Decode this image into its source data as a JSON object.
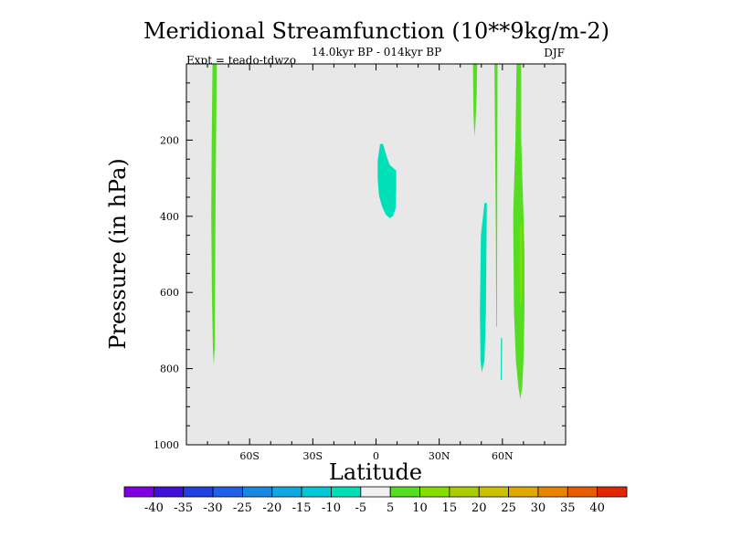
{
  "chart_data": {
    "type": "contour",
    "title": "Meridional Streamfunction (10**9kg/m-2)",
    "subtitle": "14.0kyr BP - 014kyr BP",
    "left_label": "Expt = teado-tdwzo",
    "right_label": "DJF",
    "xlabel": "Latitude",
    "ylabel": "Pressure (in hPa)",
    "xlim": [
      -90,
      90
    ],
    "ylim": [
      1000,
      0
    ],
    "x_ticks": [
      {
        "value": -60,
        "label": "60S"
      },
      {
        "value": -30,
        "label": "30S"
      },
      {
        "value": 0,
        "label": "0"
      },
      {
        "value": 30,
        "label": "30N"
      },
      {
        "value": 60,
        "label": "60N"
      }
    ],
    "y_ticks": [
      {
        "value": 200,
        "label": "200"
      },
      {
        "value": 400,
        "label": "400"
      },
      {
        "value": 600,
        "label": "600"
      },
      {
        "value": 800,
        "label": "800"
      },
      {
        "value": 1000,
        "label": "1000"
      }
    ],
    "background_color": "#e8e8e8",
    "regions": [
      {
        "name": "sh-positive-cell",
        "level": "5 to 10",
        "color": "#55dd22",
        "points": [
          [
            -77.6,
            0
          ],
          [
            -75.6,
            0
          ],
          [
            -75.9,
            200
          ],
          [
            -76.2,
            400
          ],
          [
            -76.4,
            600
          ],
          [
            -76.6,
            750
          ],
          [
            -77.0,
            790
          ],
          [
            -77.4,
            750
          ],
          [
            -77.9,
            600
          ],
          [
            -78.2,
            400
          ],
          [
            -78.0,
            200
          ]
        ]
      },
      {
        "name": "equatorial-negative-cell",
        "level": "-10 to -5",
        "color": "#00e0b8",
        "points": [
          [
            1.9,
            210
          ],
          [
            3.3,
            210
          ],
          [
            5.2,
            245
          ],
          [
            6.5,
            265
          ],
          [
            9.6,
            280
          ],
          [
            9.6,
            330
          ],
          [
            9.3,
            380
          ],
          [
            8.0,
            400
          ],
          [
            6.5,
            405
          ],
          [
            4.6,
            395
          ],
          [
            2.9,
            375
          ],
          [
            1.4,
            345
          ],
          [
            0.8,
            300
          ],
          [
            0.8,
            255
          ]
        ]
      },
      {
        "name": "nh-positive-strip-a",
        "level": "5 to 10",
        "color": "#55dd22",
        "points": [
          [
            46.0,
            0
          ],
          [
            48.0,
            0
          ],
          [
            47.8,
            80
          ],
          [
            47.2,
            160
          ],
          [
            46.7,
            190
          ],
          [
            46.3,
            130
          ]
        ]
      },
      {
        "name": "nh-negative-cell-a",
        "level": "-10 to -5",
        "color": "#00e0b8",
        "points": [
          [
            51.5,
            365
          ],
          [
            52.6,
            365
          ],
          [
            52.4,
            500
          ],
          [
            52.2,
            650
          ],
          [
            51.5,
            780
          ],
          [
            50.2,
            810
          ],
          [
            49.6,
            780
          ],
          [
            49.3,
            650
          ],
          [
            49.8,
            450
          ]
        ]
      },
      {
        "name": "nh-positive-strip-b",
        "level": "5 to 10",
        "color": "#55dd22",
        "points": [
          [
            56.2,
            0
          ],
          [
            57.7,
            0
          ],
          [
            57.6,
            200
          ],
          [
            57.5,
            450
          ],
          [
            57.4,
            690
          ],
          [
            57.1,
            690
          ],
          [
            56.9,
            450
          ],
          [
            56.5,
            200
          ]
        ]
      },
      {
        "name": "nh-negative-sliver",
        "level": "-10 to -5",
        "color": "#00e0b8",
        "points": [
          [
            59.3,
            720
          ],
          [
            59.9,
            720
          ],
          [
            59.7,
            830
          ],
          [
            59.2,
            830
          ]
        ]
      },
      {
        "name": "nh-positive-cell-b",
        "level": "5 to 10",
        "color": "#55dd22",
        "points": [
          [
            66.7,
            0
          ],
          [
            68.9,
            0
          ],
          [
            68.9,
            200
          ],
          [
            70.0,
            400
          ],
          [
            70.5,
            500
          ],
          [
            70.5,
            650
          ],
          [
            70.0,
            780
          ],
          [
            69.4,
            850
          ],
          [
            68.5,
            880
          ],
          [
            67.6,
            850
          ],
          [
            66.4,
            780
          ],
          [
            65.5,
            650
          ],
          [
            65.1,
            400
          ],
          [
            66.2,
            200
          ]
        ]
      },
      {
        "name": "nh-positive-cell-b-core",
        "level": "10 to 15",
        "color": "#88dd00",
        "points": [
          [
            68.3,
            420
          ],
          [
            69.1,
            420
          ],
          [
            69.3,
            520
          ],
          [
            69.1,
            620
          ],
          [
            68.5,
            640
          ],
          [
            68.2,
            560
          ]
        ]
      }
    ],
    "colorbar": {
      "boundary_labels": [
        "-40",
        "-35",
        "-30",
        "-25",
        "-20",
        "-15",
        "-10",
        "-5",
        "5",
        "10",
        "15",
        "20",
        "25",
        "30",
        "35",
        "40"
      ],
      "colors": [
        "#8000e0",
        "#4010d8",
        "#2040e0",
        "#2060e8",
        "#1888e0",
        "#10a8e0",
        "#00c8d8",
        "#00e0b8",
        "#f0f0f0",
        "#55dd22",
        "#88dd00",
        "#aacc00",
        "#ccc000",
        "#e0a800",
        "#e88400",
        "#e85c00",
        "#e02800"
      ]
    }
  }
}
